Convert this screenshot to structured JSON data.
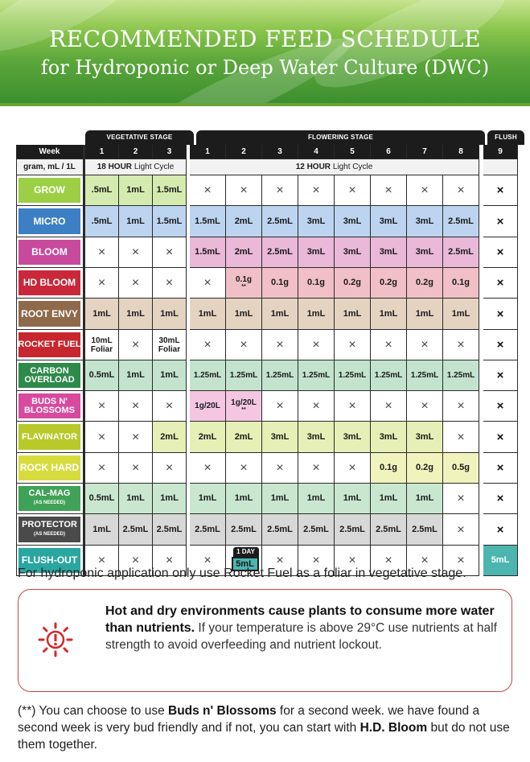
{
  "title": "RECOMMENDED FEED SCHEDULE",
  "subtitle": "for Hydroponic or Deep Water Culture (DWC)",
  "stages": {
    "vegetative": "VEGETATIVE STAGE",
    "flowering": "FLOWERING STAGE",
    "flush": "FLUSH"
  },
  "header": {
    "week_label": "Week",
    "weeks": [
      "1",
      "2",
      "3",
      "1",
      "2",
      "3",
      "4",
      "5",
      "6",
      "7",
      "8",
      "9"
    ],
    "unit_label": "gram, mL / 1L",
    "veg_cycle_bold": "18 HOUR",
    "veg_cycle_rest": " Light Cycle",
    "flower_cycle_bold": "12 HOUR",
    "flower_cycle_rest": " Light Cycle"
  },
  "rows": [
    {
      "name": "GROW",
      "color": "#9ccf45",
      "cell_color": "#d4ebb0",
      "values": [
        ".5mL",
        "1mL",
        "1.5mL",
        "×",
        "×",
        "×",
        "×",
        "×",
        "×",
        "×",
        "×",
        "×"
      ]
    },
    {
      "name": "MICRO",
      "color": "#3d7fc4",
      "cell_color": "#bcd4ef",
      "values": [
        ".5mL",
        "1mL",
        "1.5mL",
        "1.5mL",
        "2mL",
        "2.5mL",
        "3mL",
        "3mL",
        "3mL",
        "3mL",
        "2.5mL",
        "×"
      ]
    },
    {
      "name": "BLOOM",
      "color": "#c84a9c",
      "cell_color": "#eab8d8",
      "values": [
        "×",
        "×",
        "×",
        "1.5mL",
        "2mL",
        "2.5mL",
        "3mL",
        "3mL",
        "3mL",
        "3mL",
        "2.5mL",
        "×"
      ]
    },
    {
      "name": "HD BLOOM",
      "color": "#c9283a",
      "cell_color": "#f0c0c6",
      "values": [
        "×",
        "×",
        "×",
        "×",
        "0.1g",
        "0.1g",
        "0.1g",
        "0.2g",
        "0.2g",
        "0.2g",
        "0.1g",
        "×"
      ],
      "notes": {
        "4": "**"
      }
    },
    {
      "name": "ROOT ENVY",
      "color": "#8e6a4b",
      "cell_color": "#e5d3c2",
      "values": [
        "1mL",
        "1mL",
        "1mL",
        "1mL",
        "1mL",
        "1mL",
        "1mL",
        "1mL",
        "1mL",
        "1mL",
        "1mL",
        "×"
      ]
    },
    {
      "name": "ROCKET FUEL",
      "color": "#c8262e",
      "cell_color": "#ffffff",
      "values": [
        "10mL",
        "×",
        "30mL",
        "×",
        "×",
        "×",
        "×",
        "×",
        "×",
        "×",
        "×",
        "×"
      ],
      "subs": {
        "0": "Foliar",
        "2": "Foliar"
      }
    },
    {
      "name": "CARBON OVERLOAD",
      "name_lines": [
        "CARBON",
        "OVERLOAD"
      ],
      "color": "#2e8a4a",
      "cell_color": "#c3e3cd",
      "values": [
        "0.5mL",
        "1mL",
        "1mL",
        "1.25mL",
        "1.25mL",
        "1.25mL",
        "1.25mL",
        "1.25mL",
        "1.25mL",
        "1.25mL",
        "1.25mL",
        "×"
      ]
    },
    {
      "name": "BUDS N' BLOSSOMS",
      "name_lines": [
        "BUDS N'",
        "BLOSSOMS"
      ],
      "color": "#d84a9e",
      "cell_color": "#f4c6e2",
      "values": [
        "×",
        "×",
        "×",
        "1g/20L",
        "1g/20L",
        "×",
        "×",
        "×",
        "×",
        "×",
        "×",
        "×"
      ],
      "notes": {
        "4": "**"
      }
    },
    {
      "name": "FLAVINATOR",
      "color": "#b8c92a",
      "cell_color": "#e6efb6",
      "values": [
        "×",
        "×",
        "2mL",
        "2mL",
        "2mL",
        "3mL",
        "3mL",
        "3mL",
        "3mL",
        "3mL",
        "×",
        "×"
      ]
    },
    {
      "name": "ROCK HARD",
      "color": "#d7dc3e",
      "cell_color": "#f1f3bc",
      "values": [
        "×",
        "×",
        "×",
        "×",
        "×",
        "×",
        "×",
        "×",
        "0.1g",
        "0.2g",
        "0.5g",
        "×"
      ]
    },
    {
      "name": "CAL-MAG",
      "name_sub": "(AS NEEDED)",
      "color": "#3fa257",
      "cell_color": "#c9e7cf",
      "values": [
        "0.5mL",
        "1mL",
        "1mL",
        "1mL",
        "1mL",
        "1mL",
        "1mL",
        "1mL",
        "1mL",
        "1mL",
        "×",
        "×"
      ]
    },
    {
      "name": "PROTECTOR",
      "name_sub": "(AS NEEDED)",
      "color": "#4a4a4a",
      "cell_color": "#d8d8d8",
      "values": [
        "1mL",
        "2.5mL",
        "2.5mL",
        "2.5mL",
        "2.5mL",
        "2.5mL",
        "2.5mL",
        "2.5mL",
        "2.5mL",
        "2.5mL",
        "×",
        "×"
      ]
    },
    {
      "name": "FLUSH-OUT",
      "color": "#2aa6a0",
      "cell_color": "#ffffff",
      "values": [
        "×",
        "×",
        "×",
        "×",
        "×",
        "×",
        "×",
        "×",
        "×",
        "×",
        "×",
        "5mL"
      ]
    }
  ],
  "flush_tag": {
    "label": "1 DAY",
    "value": "5mL"
  },
  "note": "For hydroponic application only use Rocket Fuel as a foliar in vegetative stage.",
  "warning": {
    "bold": "Hot and dry environments cause plants to consume more water than nutrients.",
    "text": " If your temperature is above 29°C use nutrients at half strength to avoid overfeeding and nutrient lockout."
  },
  "footnote": {
    "part1": "(**) You can choose to use ",
    "bold1": "Buds n' Blossoms",
    "part2": " for a second week. we have found a second week is very bud friendly and if not, you can start with ",
    "bold2": "H.D. Bloom",
    "part3": " but do not use them together."
  }
}
